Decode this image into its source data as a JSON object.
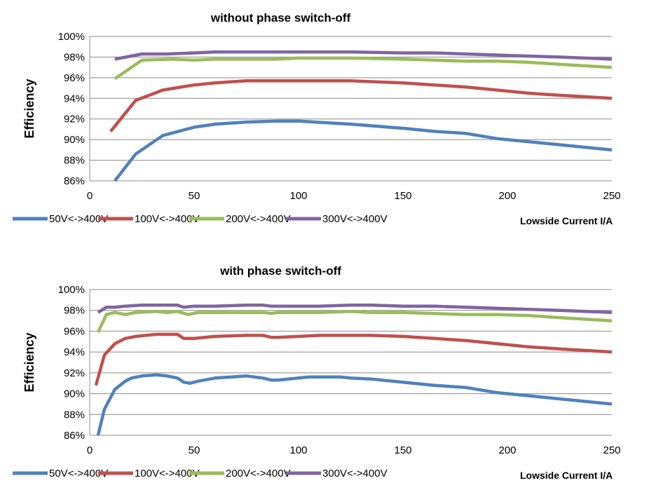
{
  "chart_data": [
    {
      "type": "line",
      "title": "without phase switch-off",
      "ylabel": "Efficiency",
      "xlabel": "Lowside Current I/A",
      "xlim": [
        0,
        250
      ],
      "ylim": [
        86,
        100
      ],
      "xticks": [
        "0",
        "50",
        "100",
        "150",
        "200",
        "250"
      ],
      "yticks": [
        "86%",
        "88%",
        "90%",
        "92%",
        "94%",
        "96%",
        "98%",
        "100%"
      ],
      "grid": "horizontal",
      "legend": "bottom",
      "series": [
        {
          "name": "50V<->400V",
          "color": "#4f81bd",
          "x": [
            12,
            22,
            35,
            50,
            60,
            75,
            90,
            100,
            125,
            150,
            165,
            180,
            195,
            210,
            225,
            250
          ],
          "y": [
            86.0,
            88.6,
            90.4,
            91.2,
            91.5,
            91.7,
            91.8,
            91.8,
            91.5,
            91.1,
            90.8,
            90.6,
            90.1,
            89.8,
            89.5,
            89.0
          ]
        },
        {
          "name": "100V<->400V",
          "color": "#c0504d",
          "x": [
            10,
            22,
            35,
            50,
            60,
            75,
            90,
            100,
            125,
            150,
            165,
            180,
            195,
            210,
            225,
            250
          ],
          "y": [
            90.8,
            93.8,
            94.8,
            95.3,
            95.5,
            95.7,
            95.7,
            95.7,
            95.7,
            95.5,
            95.3,
            95.1,
            94.8,
            94.5,
            94.3,
            94.0
          ]
        },
        {
          "name": "200V<->400V",
          "color": "#9bbb59",
          "x": [
            12,
            25,
            40,
            50,
            60,
            75,
            90,
            100,
            125,
            150,
            165,
            180,
            195,
            210,
            225,
            250
          ],
          "y": [
            95.9,
            97.7,
            97.8,
            97.7,
            97.8,
            97.8,
            97.8,
            97.9,
            97.9,
            97.8,
            97.7,
            97.6,
            97.6,
            97.5,
            97.3,
            97.0
          ]
        },
        {
          "name": "300V<->400V",
          "color": "#8064a2",
          "x": [
            12,
            25,
            37,
            50,
            60,
            75,
            90,
            100,
            125,
            150,
            165,
            180,
            195,
            210,
            225,
            250
          ],
          "y": [
            97.8,
            98.3,
            98.3,
            98.4,
            98.5,
            98.5,
            98.5,
            98.5,
            98.5,
            98.4,
            98.4,
            98.3,
            98.2,
            98.1,
            98.0,
            97.8
          ]
        }
      ]
    },
    {
      "type": "line",
      "title": "with phase switch-off",
      "ylabel": "Efficiency",
      "xlabel": "Lowside Current I/A",
      "xlim": [
        0,
        250
      ],
      "ylim": [
        86,
        100
      ],
      "xticks": [
        "0",
        "50",
        "100",
        "150",
        "200",
        "250"
      ],
      "yticks": [
        "86%",
        "88%",
        "90%",
        "92%",
        "94%",
        "96%",
        "98%",
        "100%"
      ],
      "grid": "horizontal",
      "legend": "bottom",
      "series": [
        {
          "name": "50V<->400V",
          "color": "#4f81bd",
          "x": [
            4,
            7,
            12,
            17,
            20,
            25,
            32,
            37,
            42,
            45,
            48,
            52,
            60,
            68,
            75,
            83,
            87,
            90,
            100,
            105,
            110,
            120,
            125,
            135,
            150,
            165,
            180,
            195,
            210,
            225,
            250
          ],
          "y": [
            86.0,
            88.5,
            90.4,
            91.2,
            91.5,
            91.7,
            91.8,
            91.7,
            91.5,
            91.1,
            91.0,
            91.2,
            91.5,
            91.6,
            91.7,
            91.5,
            91.3,
            91.3,
            91.5,
            91.6,
            91.6,
            91.6,
            91.5,
            91.4,
            91.1,
            90.8,
            90.6,
            90.1,
            89.8,
            89.5,
            89.0
          ]
        },
        {
          "name": "100V<->400V",
          "color": "#c0504d",
          "x": [
            3,
            7,
            12,
            17,
            22,
            27,
            32,
            37,
            42,
            45,
            50,
            60,
            75,
            83,
            87,
            90,
            100,
            110,
            125,
            135,
            150,
            165,
            180,
            195,
            210,
            225,
            250
          ],
          "y": [
            90.8,
            93.7,
            94.8,
            95.3,
            95.5,
            95.6,
            95.7,
            95.7,
            95.7,
            95.3,
            95.3,
            95.5,
            95.6,
            95.6,
            95.4,
            95.4,
            95.5,
            95.6,
            95.6,
            95.6,
            95.5,
            95.3,
            95.1,
            94.8,
            94.5,
            94.3,
            94.0
          ]
        },
        {
          "name": "200V<->400V",
          "color": "#9bbb59",
          "x": [
            4,
            8,
            12,
            17,
            22,
            32,
            37,
            42,
            47,
            52,
            60,
            75,
            83,
            87,
            90,
            100,
            110,
            125,
            135,
            150,
            165,
            180,
            195,
            210,
            225,
            250
          ],
          "y": [
            95.9,
            97.6,
            97.8,
            97.6,
            97.8,
            97.9,
            97.8,
            97.9,
            97.6,
            97.8,
            97.8,
            97.8,
            97.8,
            97.7,
            97.8,
            97.8,
            97.8,
            97.9,
            97.8,
            97.8,
            97.7,
            97.6,
            97.6,
            97.5,
            97.3,
            97.0
          ]
        },
        {
          "name": "300V<->400V",
          "color": "#8064a2",
          "x": [
            4,
            8,
            12,
            17,
            25,
            32,
            37,
            42,
            45,
            50,
            60,
            75,
            83,
            87,
            90,
            100,
            110,
            125,
            135,
            150,
            165,
            180,
            195,
            210,
            225,
            250
          ],
          "y": [
            97.8,
            98.3,
            98.3,
            98.4,
            98.5,
            98.5,
            98.5,
            98.5,
            98.3,
            98.4,
            98.4,
            98.5,
            98.5,
            98.4,
            98.4,
            98.4,
            98.4,
            98.5,
            98.5,
            98.4,
            98.4,
            98.3,
            98.2,
            98.1,
            98.0,
            97.8
          ]
        }
      ]
    }
  ]
}
